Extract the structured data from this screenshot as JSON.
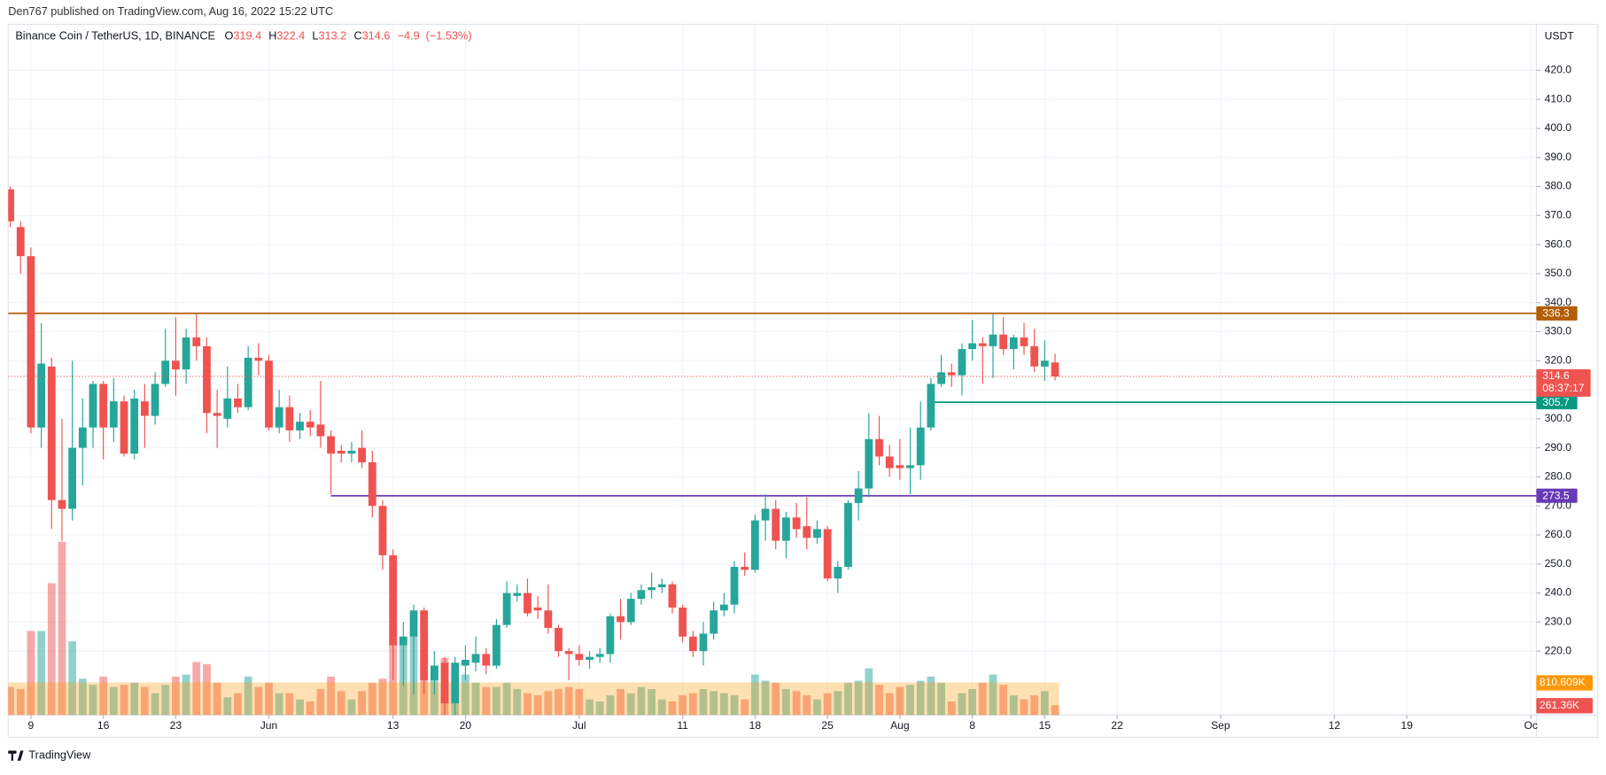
{
  "header": "Den767 published on TradingView.com, Aug 16, 2022 15:22 UTC",
  "footer_brand": "TradingView",
  "chart_data": {
    "type": "candlestick",
    "symbol": "Binance Coin / TetherUS, 1D, BINANCE",
    "ohlc_letters": [
      "O",
      "H",
      "L",
      "C"
    ],
    "change": {
      "value": -4.9,
      "label": "−4.9"
    },
    "change_pct": {
      "value": -1.53,
      "label": "(−1.53%)"
    },
    "currency": "USDT",
    "up_color": "#26a69a",
    "down_color": "#ef5350",
    "x": [
      "05-07",
      "05-08",
      "05-09",
      "05-10",
      "05-11",
      "05-12",
      "05-13",
      "05-14",
      "05-15",
      "05-16",
      "05-17",
      "05-18",
      "05-19",
      "05-20",
      "05-21",
      "05-22",
      "05-23",
      "05-24",
      "05-25",
      "05-26",
      "05-27",
      "05-28",
      "05-29",
      "05-30",
      "05-31",
      "06-01",
      "06-02",
      "06-03",
      "06-04",
      "06-05",
      "06-06",
      "06-07",
      "06-08",
      "06-09",
      "06-10",
      "06-11",
      "06-12",
      "06-13",
      "06-14",
      "06-15",
      "06-16",
      "06-17",
      "06-18",
      "06-19",
      "06-20",
      "06-21",
      "06-22",
      "06-23",
      "06-24",
      "06-25",
      "06-26",
      "06-27",
      "06-28",
      "06-29",
      "06-30",
      "07-01",
      "07-02",
      "07-03",
      "07-04",
      "07-05",
      "07-06",
      "07-07",
      "07-08",
      "07-09",
      "07-10",
      "07-11",
      "07-12",
      "07-13",
      "07-14",
      "07-15",
      "07-16",
      "07-17",
      "07-18",
      "07-19",
      "07-20",
      "07-21",
      "07-22",
      "07-23",
      "07-24",
      "07-25",
      "07-26",
      "07-27",
      "07-28",
      "07-29",
      "07-30",
      "07-31",
      "08-01",
      "08-02",
      "08-03",
      "08-04",
      "08-05",
      "08-06",
      "08-07",
      "08-08",
      "08-09",
      "08-10",
      "08-11",
      "08-12",
      "08-13",
      "08-14",
      "08-15",
      "08-16"
    ],
    "open": [
      379,
      366,
      356,
      297,
      318,
      272,
      269,
      290,
      297,
      312,
      297,
      306,
      288,
      306,
      301,
      312,
      320,
      317,
      328,
      325,
      302,
      300,
      307,
      304,
      321,
      320,
      297,
      304,
      296,
      299,
      298,
      294,
      289,
      288,
      290,
      285,
      270,
      253,
      222,
      225,
      234,
      210,
      216,
      202,
      215,
      216,
      219,
      215,
      229,
      239,
      240,
      235,
      234,
      228,
      220,
      219,
      217,
      218,
      219,
      232,
      230,
      238,
      241,
      242,
      243,
      235,
      225,
      220,
      226,
      234,
      236,
      249,
      248,
      265,
      269,
      258,
      266,
      263,
      259,
      262,
      245,
      249,
      271,
      276,
      293,
      287,
      284,
      283,
      284,
      297,
      312,
      316,
      315,
      324,
      326,
      325,
      329,
      324,
      328,
      325,
      318,
      319.4
    ],
    "high": [
      380,
      368,
      359,
      333,
      321,
      300,
      320,
      307,
      313,
      313,
      314,
      308,
      310,
      312,
      316,
      331,
      335,
      331,
      336,
      328,
      310,
      318,
      312,
      325,
      326,
      322,
      310,
      308,
      302,
      303,
      313,
      296,
      291,
      292,
      296,
      289,
      272,
      255,
      230,
      236,
      235,
      220,
      218,
      218,
      222,
      225,
      221,
      231,
      244,
      243,
      245,
      239,
      243,
      229,
      221,
      222,
      220,
      221,
      233,
      238,
      240,
      243,
      247,
      245,
      244,
      236,
      227,
      230,
      237,
      240,
      251,
      254,
      267,
      274,
      272,
      268,
      271,
      273,
      265,
      263,
      251,
      272,
      282,
      302,
      301,
      291,
      293,
      297,
      306,
      314,
      322,
      319,
      326,
      334,
      328,
      336,
      335,
      329,
      333,
      331,
      327,
      322.4
    ],
    "low": [
      366,
      350,
      295,
      290,
      262,
      258,
      265,
      277,
      290,
      286,
      292,
      287,
      286,
      290,
      298,
      311,
      308,
      312,
      320,
      295,
      290,
      297,
      302,
      303,
      315,
      296,
      295,
      292,
      293,
      294,
      290,
      274,
      285,
      285,
      283,
      266,
      248,
      210,
      208,
      205,
      205,
      205,
      185,
      198,
      210,
      213,
      212,
      214,
      228,
      237,
      232,
      231,
      226,
      218,
      210,
      215,
      214,
      216,
      216,
      224,
      229,
      236,
      238,
      240,
      233,
      223,
      218,
      215,
      224,
      232,
      233,
      246,
      247,
      258,
      255,
      252,
      259,
      255,
      257,
      244,
      240,
      248,
      265,
      273,
      284,
      280,
      279,
      274,
      279,
      296,
      311,
      311,
      308,
      320,
      312,
      314,
      322,
      317,
      322,
      316,
      313,
      313.2
    ],
    "close": [
      368,
      356,
      297,
      319,
      272,
      269,
      290,
      297,
      312,
      297,
      306,
      288,
      307,
      301,
      312,
      320,
      317,
      328,
      325,
      302,
      301,
      307,
      304,
      321,
      320,
      297,
      304,
      296,
      299,
      297,
      294,
      288,
      288,
      289,
      285,
      270,
      253,
      222,
      225,
      234,
      210,
      215,
      202,
      216,
      217,
      219,
      215,
      229,
      240,
      240,
      233,
      234,
      228,
      220,
      219,
      217,
      218,
      219,
      232,
      230,
      238,
      241,
      242,
      243,
      235,
      225,
      220,
      226,
      234,
      236,
      249,
      248,
      265,
      269,
      258,
      266,
      262,
      259,
      262,
      245,
      249,
      271,
      276,
      293,
      287,
      283,
      283,
      284,
      297,
      312,
      316,
      315,
      324,
      326,
      325,
      329,
      324,
      328,
      325,
      318,
      320,
      314.6
    ],
    "volume": [
      700000,
      650000,
      2050000,
      2050000,
      3200000,
      4200000,
      1800000,
      900000,
      750000,
      950000,
      700000,
      750000,
      800000,
      700000,
      550000,
      750000,
      950000,
      1000000,
      1300000,
      1250000,
      800000,
      450000,
      550000,
      950000,
      700000,
      800000,
      550000,
      550000,
      400000,
      350000,
      650000,
      950000,
      600000,
      400000,
      600000,
      800000,
      900000,
      1800000,
      1900000,
      2100000,
      2500000,
      1200000,
      1400000,
      1100000,
      1000000,
      800000,
      700000,
      700000,
      800000,
      650000,
      550000,
      500000,
      600000,
      650000,
      700000,
      650000,
      400000,
      350000,
      500000,
      650000,
      550000,
      700000,
      650000,
      400000,
      350000,
      500000,
      550000,
      650000,
      600000,
      550000,
      500000,
      400000,
      1000000,
      850000,
      800000,
      650000,
      600000,
      500000,
      400000,
      550000,
      600000,
      800000,
      850000,
      1150000,
      750000,
      550000,
      700000,
      750000,
      850000,
      950000,
      800000,
      350000,
      550000,
      650000,
      800000,
      1000000,
      750000,
      500000,
      400000,
      500000,
      600000,
      261360
    ],
    "last_volume_label": "261.36K",
    "volume_ma": {
      "value": 810609,
      "label": "810.609K"
    },
    "volume_ma_color": "#ff9800",
    "volume_lim": [
      0,
      5000000
    ],
    "ylim": [
      198,
      435.8
    ],
    "yticks": [
      {
        "value": 220,
        "label": "220.0"
      },
      {
        "value": 230,
        "label": "230.0"
      },
      {
        "value": 240,
        "label": "240.0"
      },
      {
        "value": 250,
        "label": "250.0"
      },
      {
        "value": 260,
        "label": "260.0"
      },
      {
        "value": 270,
        "label": "270.0"
      },
      {
        "value": 280,
        "label": "280.0"
      },
      {
        "value": 290,
        "label": "290.0"
      },
      {
        "value": 300,
        "label": "300.0"
      },
      {
        "value": 310,
        "label": "310.0"
      },
      {
        "value": 320,
        "label": "320.0"
      },
      {
        "value": 330,
        "label": "330.0"
      },
      {
        "value": 340,
        "label": "340.0"
      },
      {
        "value": 350,
        "label": "350.0"
      },
      {
        "value": 360,
        "label": "360.0"
      },
      {
        "value": 370,
        "label": "370.0"
      },
      {
        "value": 380,
        "label": "380.0"
      },
      {
        "value": 390,
        "label": "390.0"
      },
      {
        "value": 400,
        "label": "400.0"
      },
      {
        "value": 410,
        "label": "410.0"
      },
      {
        "value": 420,
        "label": "420.0"
      }
    ],
    "xticks": [
      {
        "value": "05-09",
        "label": "9"
      },
      {
        "value": "05-16",
        "label": "16"
      },
      {
        "value": "05-23",
        "label": "23"
      },
      {
        "value": "06-01",
        "label": "Jun"
      },
      {
        "value": "06-13",
        "label": "13"
      },
      {
        "value": "06-20",
        "label": "20"
      },
      {
        "value": "07-01",
        "label": "Jul"
      },
      {
        "value": "07-11",
        "label": "11"
      },
      {
        "value": "07-18",
        "label": "18"
      },
      {
        "value": "07-25",
        "label": "25"
      },
      {
        "value": "08-01",
        "label": "Aug"
      },
      {
        "value": "08-08",
        "label": "8"
      },
      {
        "value": "08-15",
        "label": "15"
      },
      {
        "value": "08-22",
        "label": "22"
      },
      {
        "value": "09-01",
        "label": "Sep"
      },
      {
        "value": "09-12",
        "label": "12"
      },
      {
        "value": "09-19",
        "label": "19"
      },
      {
        "value": "10-01",
        "label": "Oc"
      }
    ],
    "grid": true,
    "levels": [
      {
        "value": 336.3,
        "color": "#b35c00",
        "start": "05-07"
      },
      {
        "value": 305.7,
        "color": "#089981",
        "start": "08-04"
      },
      {
        "value": 273.5,
        "color": "#673ab7",
        "start": "06-07"
      }
    ],
    "countdown": "08:37:17"
  }
}
